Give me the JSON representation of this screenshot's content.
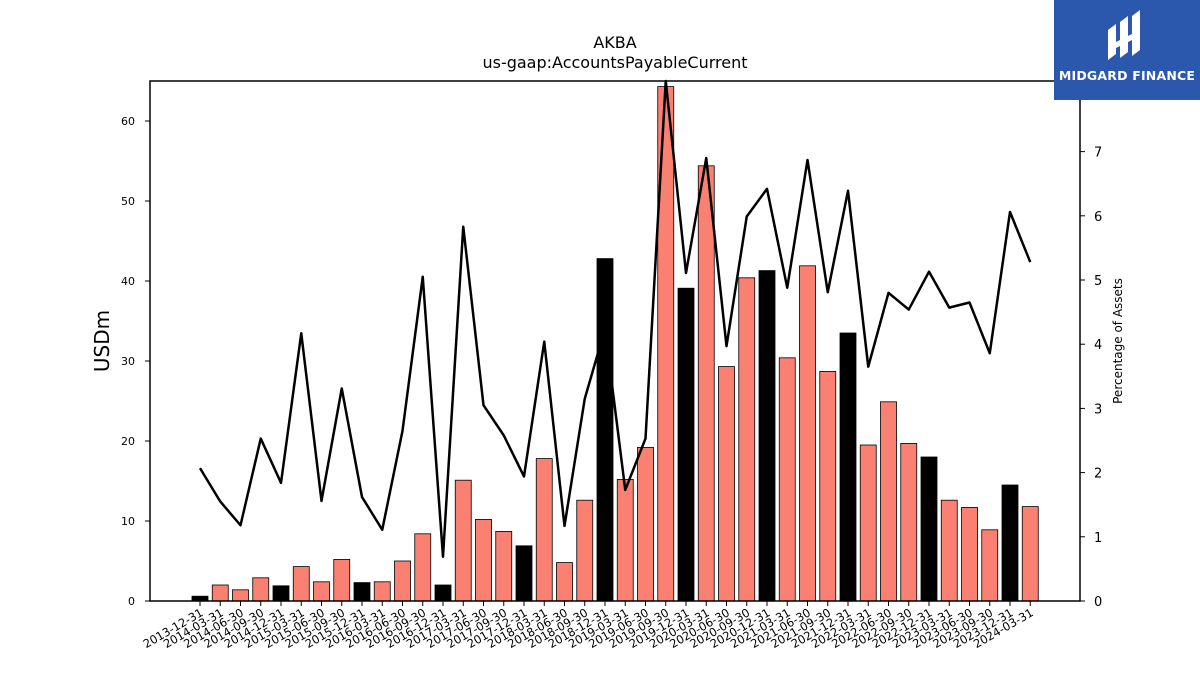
{
  "logo": {
    "text": "MIDGARD FINANCE"
  },
  "chart_data": {
    "type": "bar",
    "title": "AKBA",
    "subtitle": "us-gaap:AccountsPayableCurrent",
    "ylabel": "USDm",
    "y2label": "Percentage of Assets",
    "ylim": [
      0,
      65
    ],
    "y2lim": [
      0,
      8.1
    ],
    "yticks": [
      0,
      10,
      20,
      30,
      40,
      50,
      60
    ],
    "y2ticks": [
      0,
      1,
      2,
      3,
      4,
      5,
      6,
      7
    ],
    "colors": {
      "bar": "#fa8072",
      "bar_annual": "#000000",
      "line": "#000000"
    },
    "categories": [
      "2013-12-31",
      "2014-03-31",
      "2014-06-30",
      "2014-09-30",
      "2014-12-31",
      "2015-03-31",
      "2015-06-30",
      "2015-09-30",
      "2015-12-31",
      "2016-03-31",
      "2016-06-30",
      "2016-09-30",
      "2016-12-31",
      "2017-03-31",
      "2017-06-30",
      "2017-09-30",
      "2017-12-31",
      "2018-03-31",
      "2018-06-30",
      "2018-09-30",
      "2018-12-31",
      "2019-03-31",
      "2019-06-30",
      "2019-09-30",
      "2019-12-31",
      "2020-03-31",
      "2020-06-30",
      "2020-09-30",
      "2020-12-31",
      "2021-03-31",
      "2021-06-30",
      "2021-09-30",
      "2021-12-31",
      "2022-03-31",
      "2022-06-30",
      "2022-09-30",
      "2022-12-31",
      "2023-03-31",
      "2023-06-30",
      "2023-09-30",
      "2023-12-31",
      "2024-03-31"
    ],
    "values": [
      0.6,
      2.0,
      1.4,
      2.9,
      1.9,
      4.3,
      2.4,
      5.2,
      2.3,
      2.4,
      5.0,
      8.4,
      2.0,
      15.1,
      10.2,
      8.7,
      6.9,
      17.8,
      4.8,
      12.6,
      42.8,
      15.2,
      19.2,
      64.3,
      39.1,
      54.4,
      29.3,
      40.4,
      41.3,
      30.4,
      41.9,
      28.7,
      33.5,
      19.5,
      24.9,
      19.7,
      18.0,
      12.6,
      11.7,
      8.9,
      14.5,
      11.8
    ],
    "annual": [
      true,
      false,
      false,
      false,
      true,
      false,
      false,
      false,
      true,
      false,
      false,
      false,
      true,
      false,
      false,
      false,
      true,
      false,
      false,
      false,
      true,
      false,
      false,
      false,
      true,
      false,
      false,
      false,
      true,
      false,
      false,
      false,
      true,
      false,
      false,
      false,
      true,
      false,
      false,
      false,
      true,
      false
    ],
    "line_values": [
      2.07,
      1.55,
      1.18,
      2.53,
      1.84,
      4.17,
      1.56,
      3.31,
      1.62,
      1.11,
      2.65,
      5.05,
      0.69,
      5.83,
      3.05,
      2.58,
      1.94,
      4.04,
      1.17,
      3.15,
      4.24,
      1.73,
      2.53,
      8.1,
      5.11,
      6.9,
      3.97,
      5.99,
      6.42,
      4.88,
      6.87,
      4.81,
      6.39,
      3.65,
      4.8,
      4.54,
      5.13,
      4.57,
      4.65,
      3.86,
      6.06,
      5.28
    ]
  }
}
